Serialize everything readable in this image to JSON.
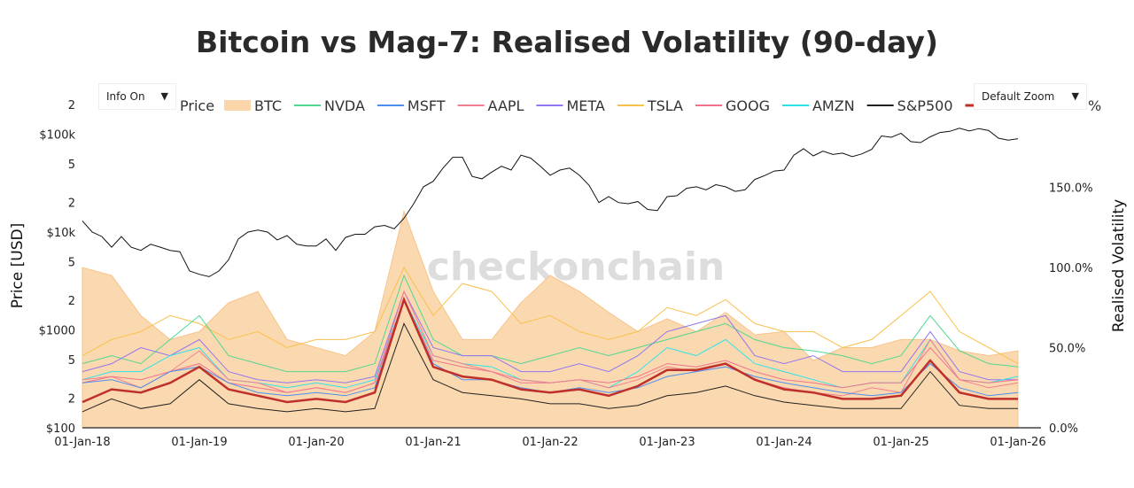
{
  "title": "Bitcoin vs Mag-7: Realised Volatility (90-day)",
  "watermark": "checkonchain",
  "controls": {
    "info": "Info On",
    "zoom": "Default Zoom",
    "arrow": "▼"
  },
  "chart_data": {
    "type": "line",
    "title": "Bitcoin vs Mag-7: Realised Volatility (90-day)",
    "legend_position": "top",
    "legend": [
      {
        "label": "Price",
        "color": null,
        "kind": "title"
      },
      {
        "label": "BTC",
        "color": "#fbd6ab",
        "kind": "area"
      },
      {
        "label": "NVDA",
        "color": "#52d690",
        "kind": "line"
      },
      {
        "label": "MSFT",
        "color": "#4d8ff0",
        "kind": "line"
      },
      {
        "label": "AAPL",
        "color": "#f27d90",
        "kind": "line"
      },
      {
        "label": "META",
        "color": "#9275f0",
        "kind": "line"
      },
      {
        "label": "TSLA",
        "color": "#f9c04c",
        "kind": "line"
      },
      {
        "label": "GOOG",
        "color": "#f0728c",
        "kind": "line"
      },
      {
        "label": "AMZN",
        "color": "#2fe2ea",
        "kind": "line"
      },
      {
        "label": "S&P500",
        "color": "#222222",
        "kind": "line"
      },
      {
        "label": "",
        "color": "#c0302a",
        "kind": "line"
      },
      {
        "label": "%",
        "color": null,
        "kind": "suffix"
      }
    ],
    "y_left": {
      "label": "Price [USD]",
      "scale": "log",
      "range": [
        100,
        200000
      ],
      "ticks": [
        {
          "v": 100,
          "t": "$100"
        },
        {
          "v": 200,
          "t": "2"
        },
        {
          "v": 500,
          "t": "5"
        },
        {
          "v": 1000,
          "t": "$1000"
        },
        {
          "v": 2000,
          "t": "2"
        },
        {
          "v": 5000,
          "t": "5"
        },
        {
          "v": 10000,
          "t": "$10k"
        },
        {
          "v": 20000,
          "t": "2"
        },
        {
          "v": 50000,
          "t": "5"
        },
        {
          "v": 100000,
          "t": "$100k"
        },
        {
          "v": 200000,
          "t": "2"
        }
      ]
    },
    "y_right": {
      "label": "Realised Volatility",
      "range": [
        0,
        200
      ],
      "ticks": [
        {
          "v": 0,
          "t": "0.0%"
        },
        {
          "v": 50,
          "t": "50.0%"
        },
        {
          "v": 100,
          "t": "100.0%"
        },
        {
          "v": 150,
          "t": "150.0%"
        }
      ]
    },
    "x_ticks": [
      "01-Jan-18",
      "01-Jan-19",
      "01-Jan-20",
      "01-Jan-21",
      "01-Jan-22",
      "01-Jan-23",
      "01-Jan-24",
      "01-Jan-25",
      "01-Jan-26"
    ],
    "x_range": [
      "2018-01-01",
      "2026-02-01"
    ],
    "btc_price_monthly_from_2018_01": [
      13000,
      10000,
      9000,
      7000,
      9000,
      7000,
      6500,
      7500,
      7000,
      6500,
      6300,
      4000,
      3700,
      3500,
      4000,
      5200,
      8500,
      10000,
      10500,
      10000,
      8300,
      9200,
      7500,
      7200,
      7200,
      8500,
      6500,
      8800,
      9500,
      9500,
      11300,
      11700,
      10800,
      13800,
      19500,
      29000,
      33000,
      45000,
      58000,
      58000,
      37000,
      35000,
      41000,
      47000,
      43000,
      61000,
      57000,
      47000,
      38000,
      43000,
      45000,
      38000,
      30000,
      20000,
      23000,
      20000,
      19500,
      20500,
      17000,
      16600,
      23000,
      23500,
      28000,
      29000,
      27000,
      30500,
      29000,
      26000,
      27000,
      34500,
      37700,
      42000,
      43000,
      61000,
      71000,
      60000,
      67000,
      62000,
      64000,
      59000,
      63000,
      70000,
      96000,
      93000,
      102000,
      84000,
      82000,
      94000,
      104000,
      107000,
      115000,
      108000,
      114000,
      109000,
      91000,
      87000,
      90000
    ],
    "volatility_quarterly_from_2018_01": {
      "BTC": [
        100,
        95,
        70,
        55,
        60,
        78,
        85,
        55,
        50,
        45,
        60,
        135,
        85,
        55,
        55,
        78,
        95,
        85,
        72,
        60,
        68,
        60,
        72,
        58,
        60,
        42,
        50,
        50,
        55,
        55,
        48,
        45,
        48
      ],
      "NVDA": [
        40,
        45,
        40,
        55,
        70,
        45,
        40,
        35,
        35,
        35,
        40,
        95,
        55,
        45,
        45,
        40,
        45,
        50,
        45,
        50,
        55,
        60,
        65,
        55,
        50,
        48,
        45,
        40,
        45,
        70,
        48,
        40,
        38
      ],
      "MSFT": [
        28,
        30,
        25,
        35,
        38,
        28,
        22,
        20,
        22,
        20,
        25,
        80,
        40,
        30,
        30,
        25,
        22,
        25,
        22,
        25,
        32,
        35,
        38,
        32,
        28,
        25,
        22,
        20,
        22,
        40,
        25,
        20,
        22
      ],
      "AAPL": [
        30,
        32,
        25,
        35,
        48,
        30,
        28,
        22,
        25,
        22,
        28,
        85,
        45,
        40,
        35,
        30,
        28,
        30,
        25,
        30,
        38,
        35,
        40,
        30,
        25,
        22,
        20,
        25,
        22,
        55,
        30,
        25,
        28
      ],
      "META": [
        35,
        40,
        50,
        45,
        55,
        35,
        30,
        28,
        30,
        28,
        32,
        85,
        50,
        45,
        45,
        35,
        35,
        40,
        35,
        45,
        60,
        65,
        70,
        45,
        40,
        45,
        35,
        35,
        35,
        60,
        35,
        30,
        30
      ],
      "TSLA": [
        45,
        55,
        60,
        70,
        65,
        55,
        60,
        50,
        55,
        55,
        60,
        100,
        70,
        90,
        85,
        65,
        70,
        60,
        55,
        60,
        75,
        70,
        80,
        65,
        60,
        60,
        50,
        55,
        70,
        85,
        60,
        50,
        40
      ],
      "GOOG": [
        28,
        32,
        30,
        35,
        40,
        28,
        25,
        22,
        25,
        22,
        28,
        80,
        42,
        38,
        35,
        28,
        28,
        30,
        28,
        32,
        40,
        38,
        42,
        35,
        30,
        28,
        25,
        28,
        28,
        50,
        30,
        28,
        30
      ],
      "AMZN": [
        30,
        35,
        35,
        45,
        50,
        30,
        28,
        25,
        28,
        25,
        30,
        80,
        45,
        40,
        38,
        30,
        28,
        30,
        25,
        35,
        50,
        45,
        55,
        40,
        35,
        30,
        25,
        28,
        28,
        55,
        30,
        28,
        32
      ],
      "S&P500": [
        10,
        18,
        12,
        15,
        30,
        15,
        12,
        10,
        12,
        10,
        12,
        65,
        30,
        22,
        20,
        18,
        15,
        15,
        12,
        14,
        20,
        22,
        26,
        20,
        16,
        14,
        12,
        12,
        12,
        35,
        14,
        12,
        12
      ],
      "AVG": [
        16,
        24,
        22,
        28,
        38,
        24,
        20,
        16,
        18,
        16,
        22,
        80,
        38,
        32,
        30,
        24,
        22,
        24,
        20,
        26,
        36,
        36,
        40,
        30,
        24,
        22,
        18,
        18,
        20,
        42,
        22,
        18,
        18
      ]
    }
  }
}
